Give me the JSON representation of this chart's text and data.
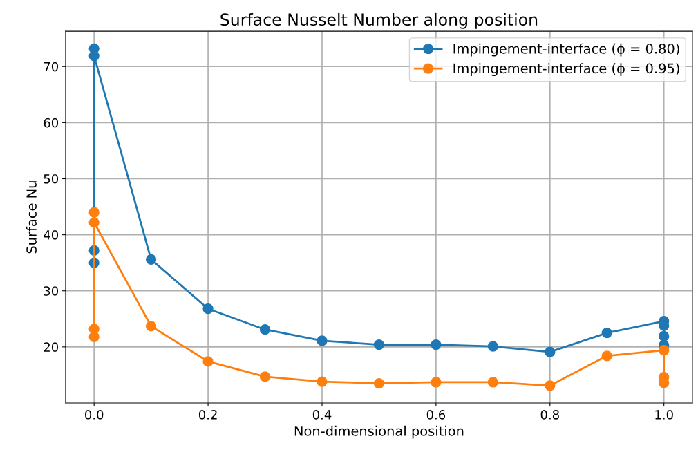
{
  "chart_data": {
    "type": "line",
    "title": "Surface Nusselt Number along position",
    "xlabel": "Non-dimensional position",
    "ylabel": "Surface Nu",
    "series": [
      {
        "name": "Impingement-interface (ϕ = 0.80)",
        "color": "#1f77b4",
        "x": [
          0,
          0,
          0,
          0,
          0.1,
          0.2,
          0.3,
          0.4,
          0.5,
          0.6,
          0.7,
          0.8,
          0.9,
          1.0,
          1.0,
          1.0,
          1.0
        ],
        "values": [
          35.0,
          37.2,
          73.2,
          71.9,
          35.6,
          26.8,
          23.1,
          21.1,
          20.4,
          20.4,
          20.1,
          19.1,
          22.5,
          24.6,
          23.8,
          21.9,
          20.3
        ]
      },
      {
        "name": "Impingement-interface (ϕ = 0.95)",
        "color": "#ff7f0e",
        "x": [
          0,
          0,
          0,
          0,
          0.1,
          0.2,
          0.3,
          0.4,
          0.5,
          0.6,
          0.7,
          0.8,
          0.9,
          1.0,
          1.0,
          1.0
        ],
        "values": [
          21.8,
          23.2,
          44.0,
          42.2,
          23.7,
          17.4,
          14.7,
          13.8,
          13.5,
          13.7,
          13.7,
          13.1,
          18.4,
          19.4,
          14.6,
          13.6
        ]
      }
    ],
    "xlim": [
      -0.05,
      1.05
    ],
    "xticks": [
      {
        "value": 0,
        "label": "0.0"
      },
      0.2,
      0.4,
      0.6,
      0.8,
      {
        "value": 1,
        "label": "1.0"
      }
    ],
    "ylim": [
      10.0,
      76.3
    ],
    "yticks": [
      20,
      30,
      40,
      50,
      60,
      70
    ],
    "grid": true,
    "legend": "top right",
    "marker": "circle",
    "line_style": "solid"
  }
}
